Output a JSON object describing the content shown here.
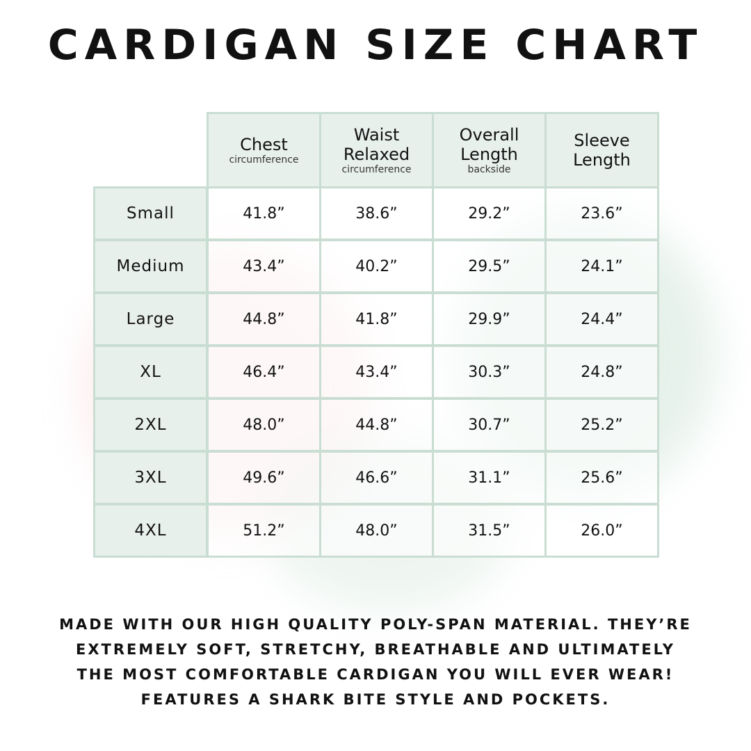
{
  "title": "CARDIGAN SIZE CHART",
  "colors": {
    "grid": "#c9ddd3",
    "header_fill": "#e8f0ec",
    "text": "#111111"
  },
  "chart_data": {
    "type": "table",
    "columns": [
      {
        "title": "Chest",
        "subtitle": "circumference"
      },
      {
        "title": "Waist Relaxed",
        "subtitle": "circumference"
      },
      {
        "title": "Overall Length",
        "subtitle": "backside"
      },
      {
        "title": "Sleeve Length",
        "subtitle": ""
      }
    ],
    "rows": [
      {
        "size": "Small",
        "values": [
          "41.8”",
          "38.6”",
          "29.2”",
          "23.6”"
        ]
      },
      {
        "size": "Medium",
        "values": [
          "43.4”",
          "40.2”",
          "29.5”",
          "24.1”"
        ]
      },
      {
        "size": "Large",
        "values": [
          "44.8”",
          "41.8”",
          "29.9”",
          "24.4”"
        ]
      },
      {
        "size": "XL",
        "values": [
          "46.4”",
          "43.4”",
          "30.3”",
          "24.8”"
        ]
      },
      {
        "size": "2XL",
        "values": [
          "48.0”",
          "44.8”",
          "30.7”",
          "25.2”"
        ]
      },
      {
        "size": "3XL",
        "values": [
          "49.6”",
          "46.6”",
          "31.1”",
          "25.6”"
        ]
      },
      {
        "size": "4XL",
        "values": [
          "51.2”",
          "48.0”",
          "31.5”",
          "26.0”"
        ]
      }
    ]
  },
  "footer": {
    "lines": [
      "MADE WITH OUR HIGH QUALITY POLY-SPAN MATERIAL. THEY’RE",
      "EXTREMELY SOFT, STRETCHY, BREATHABLE AND ULTIMATELY",
      "THE MOST COMFORTABLE CARDIGAN YOU WILL EVER WEAR!",
      "FEATURES A SHARK BITE STYLE AND POCKETS."
    ]
  }
}
